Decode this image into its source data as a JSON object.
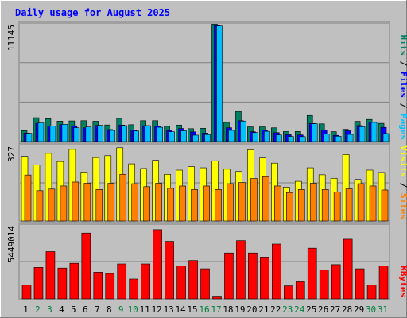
{
  "chart_data": {
    "type": "bar",
    "title": "Daily usage for August 2025",
    "categories": [
      "1",
      "2",
      "3",
      "4",
      "5",
      "6",
      "7",
      "8",
      "9",
      "10",
      "11",
      "12",
      "13",
      "14",
      "15",
      "16",
      "17",
      "18",
      "19",
      "20",
      "21",
      "22",
      "23",
      "24",
      "25",
      "26",
      "27",
      "28",
      "29",
      "30",
      "31"
    ],
    "weekend_days": [
      "2",
      "3",
      "9",
      "10",
      "16",
      "17",
      "23",
      "24",
      "30",
      "31"
    ],
    "colors": {
      "background": "#c0c0c0",
      "panel": "#c0c0c0",
      "title": "#0000ff",
      "hits": "#008060",
      "files": "#0000ff",
      "pages": "#00c0ff",
      "visits": "#ffff00",
      "sites": "#ff8000",
      "kbytes": "#ff0000",
      "weekday_label": "#000000",
      "weekend_label": "#008040"
    },
    "panels": [
      {
        "ymax_label": "11145",
        "ymax": 11145,
        "legend": [
          {
            "label": "Pages",
            "color": "#00c0ff"
          },
          {
            "label": "Files",
            "color": "#0000ff"
          },
          {
            "label": "Hits",
            "color": "#008060"
          }
        ],
        "series": [
          {
            "name": "Hits",
            "values": [
              1020,
              2240,
              2150,
              1920,
              1940,
              1960,
              1910,
              1560,
              2180,
              1580,
              1960,
              1960,
              1430,
              1550,
              1210,
              1250,
              11040,
              1800,
              2830,
              1380,
              1380,
              1290,
              940,
              950,
              2450,
              1660,
              930,
              1150,
              1900,
              2080,
              1710
            ]
          },
          {
            "name": "Files",
            "values": [
              800,
              1710,
              1470,
              1600,
              1480,
              1290,
              1520,
              1130,
              1550,
              1090,
              1490,
              1460,
              1040,
              1230,
              910,
              800,
              10930,
              1300,
              1960,
              920,
              1060,
              840,
              640,
              620,
              1700,
              1060,
              580,
              1010,
              1500,
              1820,
              1330
            ]
          },
          {
            "name": "Pages",
            "values": [
              780,
              1750,
              1460,
              1620,
              1300,
              1370,
              1520,
              1050,
              1500,
              990,
              1490,
              1340,
              920,
              1010,
              600,
              660,
              10870,
              1050,
              1920,
              840,
              960,
              620,
              480,
              460,
              1670,
              720,
              500,
              670,
              1390,
              1800,
              750
            ]
          }
        ]
      },
      {
        "ymax_label": "327",
        "ymax": 327,
        "legend": [
          {
            "label": "Sites",
            "color": "#ff8000"
          },
          {
            "label": "Visits",
            "color": "#ffff00"
          }
        ],
        "series": [
          {
            "name": "Visits",
            "values": [
              277,
              240,
              290,
              255,
              307,
              210,
              272,
              280,
              314,
              245,
              225,
              260,
              200,
              218,
              233,
              228,
              258,
              222,
              212,
              305,
              270,
              248,
              145,
              170,
              228,
              198,
              183,
              285,
              178,
              218,
              208
            ]
          },
          {
            "name": "Sites",
            "values": [
              197,
              130,
              137,
              150,
              167,
              162,
              135,
              162,
              200,
              160,
              147,
              162,
              140,
              150,
              135,
              150,
              135,
              160,
              165,
              182,
              190,
              150,
              122,
              135,
              162,
              135,
              125,
              138,
              160,
              150,
              133
            ]
          }
        ]
      },
      {
        "ymax_label": "5449014",
        "ymax": 5449014,
        "legend": [
          {
            "label": "KBytes",
            "color": "#ff0000"
          }
        ],
        "series": [
          {
            "name": "KBytes",
            "values": [
              1000000,
              2300000,
              3450000,
              2250000,
              2600000,
              4800000,
              1950000,
              1850000,
              2550000,
              1450000,
              2550000,
              5050000,
              4200000,
              2400000,
              2800000,
              2200000,
              200000,
              3350000,
              4250000,
              3350000,
              3050000,
              4000000,
              950000,
              1250000,
              3700000,
              2100000,
              2500000,
              4350000,
              2200000,
              1000000,
              2400000
            ]
          }
        ]
      }
    ]
  }
}
